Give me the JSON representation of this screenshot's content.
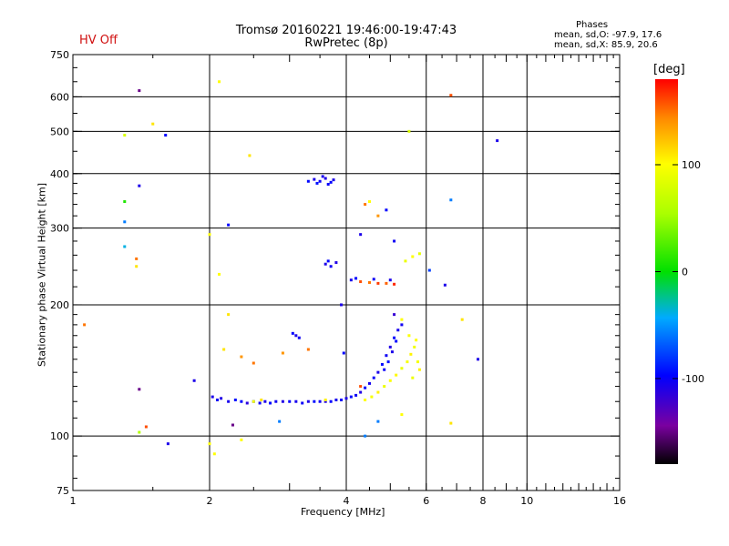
{
  "header": {
    "title": "Tromsø 20160221 19:46:00-19:47:43",
    "subtitle": "RwPretec (8p)",
    "hv_status": "HV Off",
    "stats_title": "Phases",
    "stats_o": "mean, sd,O: -97.9, 17.6",
    "stats_x": "mean, sd,X:  85.9, 20.6"
  },
  "colorbar": {
    "label": "[deg]",
    "ticks": [
      {
        "label": "100",
        "value": 100
      },
      {
        "label": "0",
        "value": 0
      },
      {
        "label": "-100",
        "value": -100
      }
    ],
    "range": [
      -180,
      180
    ]
  },
  "chart_data": {
    "type": "scatter",
    "title": "Tromsø 20160221 19:46:00-19:47:43",
    "subtitle": "RwPretec (8p)",
    "xlabel": "Frequency [MHz]",
    "ylabel": "Stationary phase Virtual Height [km]",
    "xscale": "log",
    "yscale": "log",
    "xlim": [
      1,
      16
    ],
    "ylim": [
      75,
      750
    ],
    "xticks": [
      {
        "value": 1,
        "label": "1"
      },
      {
        "value": 2,
        "label": "2"
      },
      {
        "value": 4,
        "label": "4"
      },
      {
        "value": 6,
        "label": "6"
      },
      {
        "value": 8,
        "label": "8"
      },
      {
        "value": 10,
        "label": "10"
      },
      {
        "value": 16,
        "label": "16"
      }
    ],
    "yticks": [
      {
        "value": 75,
        "label": "75"
      },
      {
        "value": 100,
        "label": "100"
      },
      {
        "value": 200,
        "label": "200"
      },
      {
        "value": 300,
        "label": "300"
      },
      {
        "value": 400,
        "label": "400"
      },
      {
        "value": 500,
        "label": "500"
      },
      {
        "value": 600,
        "label": "600"
      },
      {
        "value": 750,
        "label": "750"
      }
    ],
    "vgrid": [
      2,
      4,
      6,
      8,
      10
    ],
    "hgrid": [
      100,
      200,
      300,
      400,
      500,
      600
    ],
    "color_variable": "phase [deg]",
    "points": [
      {
        "f": 2.03,
        "h": 123,
        "p": -110
      },
      {
        "f": 2.08,
        "h": 121,
        "p": -105
      },
      {
        "f": 2.12,
        "h": 122,
        "p": -112
      },
      {
        "f": 2.2,
        "h": 120,
        "p": -108
      },
      {
        "f": 2.28,
        "h": 121,
        "p": -95
      },
      {
        "f": 2.35,
        "h": 120,
        "p": -100
      },
      {
        "f": 2.42,
        "h": 119,
        "p": -115
      },
      {
        "f": 2.5,
        "h": 120,
        "p": -88
      },
      {
        "f": 2.58,
        "h": 119,
        "p": -105
      },
      {
        "f": 2.65,
        "h": 120,
        "p": -110
      },
      {
        "f": 2.72,
        "h": 119,
        "p": -98
      },
      {
        "f": 2.8,
        "h": 120,
        "p": -106
      },
      {
        "f": 2.9,
        "h": 120,
        "p": -112
      },
      {
        "f": 3.0,
        "h": 120,
        "p": -100
      },
      {
        "f": 3.1,
        "h": 120,
        "p": -108
      },
      {
        "f": 3.2,
        "h": 119,
        "p": -103
      },
      {
        "f": 3.3,
        "h": 120,
        "p": -110
      },
      {
        "f": 3.4,
        "h": 120,
        "p": -97
      },
      {
        "f": 3.5,
        "h": 120,
        "p": -105
      },
      {
        "f": 3.6,
        "h": 120,
        "p": -112
      },
      {
        "f": 3.7,
        "h": 120,
        "p": -100
      },
      {
        "f": 3.8,
        "h": 121,
        "p": -108
      },
      {
        "f": 3.9,
        "h": 121,
        "p": -104
      },
      {
        "f": 4.0,
        "h": 122,
        "p": -110
      },
      {
        "f": 4.1,
        "h": 123,
        "p": -98
      },
      {
        "f": 4.2,
        "h": 124,
        "p": -105
      },
      {
        "f": 4.3,
        "h": 126,
        "p": -112
      },
      {
        "f": 4.4,
        "h": 129,
        "p": -100
      },
      {
        "f": 4.5,
        "h": 132,
        "p": -107
      },
      {
        "f": 4.6,
        "h": 136,
        "p": -102
      },
      {
        "f": 4.7,
        "h": 140,
        "p": -110
      },
      {
        "f": 4.8,
        "h": 146,
        "p": -97
      },
      {
        "f": 4.9,
        "h": 153,
        "p": -105
      },
      {
        "f": 5.0,
        "h": 160,
        "p": -112
      },
      {
        "f": 5.1,
        "h": 168,
        "p": -100
      },
      {
        "f": 5.2,
        "h": 175,
        "p": -108
      },
      {
        "f": 4.85,
        "h": 142,
        "p": -103
      },
      {
        "f": 4.95,
        "h": 148,
        "p": -95
      },
      {
        "f": 5.05,
        "h": 156,
        "p": -110
      },
      {
        "f": 5.15,
        "h": 165,
        "p": -99
      },
      {
        "f": 5.3,
        "h": 180,
        "p": -106
      },
      {
        "f": 4.4,
        "h": 121,
        "p": 100
      },
      {
        "f": 4.55,
        "h": 123,
        "p": 95
      },
      {
        "f": 4.7,
        "h": 126,
        "p": 105
      },
      {
        "f": 4.85,
        "h": 130,
        "p": 90
      },
      {
        "f": 5.0,
        "h": 134,
        "p": 98
      },
      {
        "f": 5.15,
        "h": 138,
        "p": 102
      },
      {
        "f": 5.3,
        "h": 143,
        "p": 88
      },
      {
        "f": 5.45,
        "h": 148,
        "p": 96
      },
      {
        "f": 5.55,
        "h": 154,
        "p": 104
      },
      {
        "f": 5.65,
        "h": 160,
        "p": 92
      },
      {
        "f": 5.7,
        "h": 166,
        "p": 100
      },
      {
        "f": 5.75,
        "h": 148,
        "p": 95
      },
      {
        "f": 5.8,
        "h": 142,
        "p": 105
      },
      {
        "f": 5.6,
        "h": 136,
        "p": 90
      },
      {
        "f": 5.5,
        "h": 170,
        "p": 98
      },
      {
        "f": 2.5,
        "h": 120,
        "p": 95
      },
      {
        "f": 2.6,
        "h": 121,
        "p": 110
      },
      {
        "f": 3.6,
        "h": 121,
        "p": 105
      },
      {
        "f": 3.4,
        "h": 388,
        "p": -110
      },
      {
        "f": 3.5,
        "h": 384,
        "p": -105
      },
      {
        "f": 3.6,
        "h": 390,
        "p": -112
      },
      {
        "f": 3.7,
        "h": 382,
        "p": -100
      },
      {
        "f": 3.45,
        "h": 380,
        "p": -95
      },
      {
        "f": 3.55,
        "h": 394,
        "p": -108
      },
      {
        "f": 3.65,
        "h": 378,
        "p": -103
      },
      {
        "f": 3.75,
        "h": 387,
        "p": -110
      },
      {
        "f": 3.3,
        "h": 384,
        "p": -98
      },
      {
        "f": 3.6,
        "h": 248,
        "p": -110
      },
      {
        "f": 3.7,
        "h": 245,
        "p": -105
      },
      {
        "f": 3.8,
        "h": 250,
        "p": -112
      },
      {
        "f": 3.65,
        "h": 252,
        "p": -100
      },
      {
        "f": 4.1,
        "h": 228,
        "p": -108
      },
      {
        "f": 4.3,
        "h": 226,
        "p": 160
      },
      {
        "f": 4.5,
        "h": 225,
        "p": 150
      },
      {
        "f": 4.7,
        "h": 224,
        "p": 165
      },
      {
        "f": 4.9,
        "h": 224,
        "p": 155
      },
      {
        "f": 5.1,
        "h": 223,
        "p": 170
      },
      {
        "f": 4.2,
        "h": 230,
        "p": -100
      },
      {
        "f": 4.6,
        "h": 229,
        "p": -105
      },
      {
        "f": 5.0,
        "h": 228,
        "p": -110
      },
      {
        "f": 5.4,
        "h": 252,
        "p": 90
      },
      {
        "f": 5.6,
        "h": 258,
        "p": 100
      },
      {
        "f": 5.8,
        "h": 262,
        "p": 85
      },
      {
        "f": 4.4,
        "h": 340,
        "p": 150
      },
      {
        "f": 4.5,
        "h": 345,
        "p": 100
      },
      {
        "f": 4.7,
        "h": 320,
        "p": 140
      },
      {
        "f": 4.9,
        "h": 330,
        "p": -100
      },
      {
        "f": 5.1,
        "h": 280,
        "p": -105
      },
      {
        "f": 4.3,
        "h": 290,
        "p": -110
      },
      {
        "f": 3.1,
        "h": 170,
        "p": -110
      },
      {
        "f": 3.15,
        "h": 168,
        "p": -105
      },
      {
        "f": 3.05,
        "h": 172,
        "p": -100
      },
      {
        "f": 3.3,
        "h": 158,
        "p": 150
      },
      {
        "f": 3.9,
        "h": 200,
        "p": -110
      },
      {
        "f": 3.95,
        "h": 155,
        "p": -100
      },
      {
        "f": 5.1,
        "h": 190,
        "p": -120
      },
      {
        "f": 5.3,
        "h": 185,
        "p": 100
      },
      {
        "f": 1.4,
        "h": 620,
        "p": -150
      },
      {
        "f": 2.1,
        "h": 650,
        "p": 100
      },
      {
        "f": 1.5,
        "h": 520,
        "p": 110
      },
      {
        "f": 1.6,
        "h": 490,
        "p": -100
      },
      {
        "f": 1.3,
        "h": 490,
        "p": 80
      },
      {
        "f": 2.45,
        "h": 440,
        "p": 110
      },
      {
        "f": 1.4,
        "h": 375,
        "p": -110
      },
      {
        "f": 1.3,
        "h": 345,
        "p": 10
      },
      {
        "f": 1.3,
        "h": 310,
        "p": -60
      },
      {
        "f": 1.3,
        "h": 272,
        "p": -40
      },
      {
        "f": 1.38,
        "h": 255,
        "p": 150
      },
      {
        "f": 1.38,
        "h": 245,
        "p": 110
      },
      {
        "f": 2.0,
        "h": 290,
        "p": 100
      },
      {
        "f": 2.2,
        "h": 305,
        "p": -100
      },
      {
        "f": 2.1,
        "h": 235,
        "p": 100
      },
      {
        "f": 2.2,
        "h": 190,
        "p": 110
      },
      {
        "f": 1.06,
        "h": 180,
        "p": 150
      },
      {
        "f": 1.4,
        "h": 128,
        "p": -150
      },
      {
        "f": 1.45,
        "h": 105,
        "p": 160
      },
      {
        "f": 1.4,
        "h": 102,
        "p": 60
      },
      {
        "f": 1.62,
        "h": 96,
        "p": -110
      },
      {
        "f": 1.85,
        "h": 134,
        "p": -110
      },
      {
        "f": 2.0,
        "h": 96,
        "p": 100
      },
      {
        "f": 2.05,
        "h": 91,
        "p": 100
      },
      {
        "f": 2.25,
        "h": 106,
        "p": -150
      },
      {
        "f": 2.35,
        "h": 98,
        "p": 100
      },
      {
        "f": 2.15,
        "h": 158,
        "p": 110
      },
      {
        "f": 2.35,
        "h": 152,
        "p": 140
      },
      {
        "f": 2.5,
        "h": 147,
        "p": 150
      },
      {
        "f": 2.9,
        "h": 155,
        "p": 140
      },
      {
        "f": 2.85,
        "h": 108,
        "p": -60
      },
      {
        "f": 4.7,
        "h": 108,
        "p": -60
      },
      {
        "f": 6.1,
        "h": 240,
        "p": -80
      },
      {
        "f": 6.6,
        "h": 222,
        "p": -110
      },
      {
        "f": 6.8,
        "h": 605,
        "p": 160
      },
      {
        "f": 6.8,
        "h": 348,
        "p": -60
      },
      {
        "f": 7.2,
        "h": 185,
        "p": 110
      },
      {
        "f": 6.8,
        "h": 107,
        "p": 110
      },
      {
        "f": 7.8,
        "h": 150,
        "p": -110
      },
      {
        "f": 8.6,
        "h": 476,
        "p": -110
      },
      {
        "f": 5.5,
        "h": 500,
        "p": 80
      },
      {
        "f": 5.3,
        "h": 112,
        "p": 100
      },
      {
        "f": 4.3,
        "h": 130,
        "p": 160
      },
      {
        "f": 4.4,
        "h": 100,
        "p": -60
      }
    ]
  }
}
